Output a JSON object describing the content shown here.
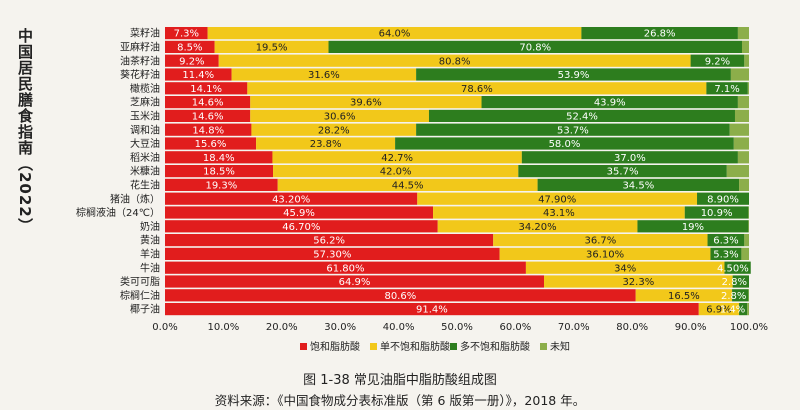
{
  "side_title": "中国居民膳食指南（2022）",
  "figure_caption": "图 1-38   常见油脂中脂肪酸组成图",
  "source_note": "资料来源：《中国食物成分表标准版（第 6 版第一册）》，2018 年。",
  "colors": {
    "sfa": "#e11d1d",
    "mufa": "#f2c81a",
    "pufa": "#2d7d1e",
    "unknown": "#8cae4a"
  },
  "chart_data": {
    "type": "bar",
    "orientation": "horizontal",
    "stacked": true,
    "xlim": [
      0,
      100
    ],
    "xticks": [
      "0.0%",
      "10.0%",
      "20.0%",
      "30.0%",
      "40.0%",
      "50.0%",
      "60.0%",
      "70.0%",
      "80.0%",
      "90.0%",
      "100.0%"
    ],
    "legend_position": "bottom",
    "categories": [
      "菜籽油",
      "亚麻籽油",
      "油茶籽油",
      "葵花籽油",
      "橄榄油",
      "芝麻油",
      "玉米油",
      "调和油",
      "大豆油",
      "稻米油",
      "米糠油",
      "花生油",
      "猪油（炼）",
      "棕榈液油（24℃）",
      "奶油",
      "黄油",
      "羊油",
      "牛油",
      "类可可脂",
      "棕榈仁油",
      "椰子油"
    ],
    "series": [
      {
        "name": "饱和脂肪酸",
        "values": [
          7.3,
          8.5,
          9.2,
          11.4,
          14.1,
          14.6,
          14.6,
          14.8,
          15.6,
          18.4,
          18.5,
          19.3,
          43.2,
          45.9,
          46.7,
          56.2,
          57.3,
          61.8,
          64.9,
          80.6,
          91.4
        ],
        "labels": [
          "7.3%",
          "8.5%",
          "9.2%",
          "11.4%",
          "14.1%",
          "14.6%",
          "14.6%",
          "14.8%",
          "15.6%",
          "18.4%",
          "18.5%",
          "19.3%",
          "43.20%",
          "45.9%",
          "46.70%",
          "56.2%",
          "57.30%",
          "61.80%",
          "64.9%",
          "80.6%",
          "91.4%"
        ]
      },
      {
        "name": "单不饱和脂肪酸",
        "values": [
          64.0,
          19.5,
          80.8,
          31.6,
          78.6,
          39.6,
          30.6,
          28.2,
          23.8,
          42.7,
          42.0,
          44.5,
          47.9,
          43.1,
          34.2,
          36.7,
          36.1,
          34.0,
          32.3,
          16.5,
          6.9
        ],
        "labels": [
          "64.0%",
          "19.5%",
          "80.8%",
          "31.6%",
          "78.6%",
          "39.6%",
          "30.6%",
          "28.2%",
          "23.8%",
          "42.7%",
          "42.0%",
          "44.5%",
          "47.90%",
          "43.1%",
          "34.20%",
          "36.7%",
          "36.10%",
          "34%",
          "32.3%",
          "16.5%",
          "6.9%"
        ]
      },
      {
        "name": "多不饱和脂肪酸",
        "values": [
          26.8,
          70.8,
          9.2,
          53.9,
          7.1,
          43.9,
          52.4,
          53.7,
          58.0,
          37.0,
          35.7,
          34.5,
          8.9,
          10.9,
          19.0,
          6.3,
          5.3,
          4.5,
          2.8,
          2.8,
          1.4
        ],
        "labels": [
          "26.8%",
          "70.8%",
          "9.2%",
          "53.9%",
          "7.1%",
          "43.9%",
          "52.4%",
          "53.7%",
          "58.0%",
          "37.0%",
          "35.7%",
          "34.5%",
          "8.90%",
          "10.9%",
          "19%",
          "6.3%",
          "5.3%",
          "4.50%",
          "2.8%",
          "2.8%",
          "1.4%"
        ]
      },
      {
        "name": "未知",
        "values": [
          1.9,
          1.2,
          0.8,
          3.1,
          0.2,
          1.9,
          2.4,
          3.3,
          2.6,
          1.9,
          3.8,
          1.7,
          0.0,
          0.1,
          0.1,
          0.8,
          1.3,
          0.0,
          0.0,
          0.1,
          0.3
        ],
        "labels": []
      }
    ]
  }
}
